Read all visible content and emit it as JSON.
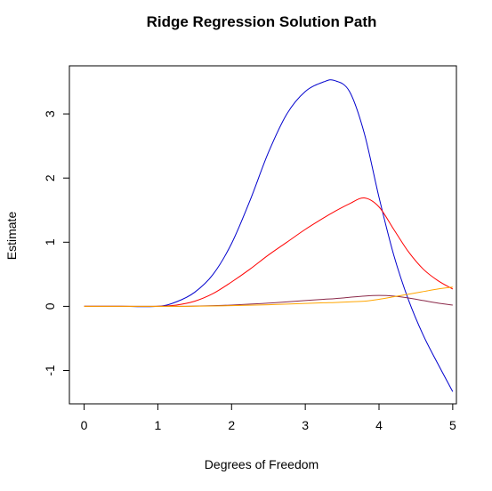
{
  "chart_data": {
    "type": "line",
    "title": "Ridge Regression Solution Path",
    "xlabel": "Degrees of Freedom",
    "ylabel": "Estimate",
    "xlim": [
      -0.2,
      5.05
    ],
    "ylim": [
      -1.52,
      3.75
    ],
    "xticks": [
      0,
      1,
      2,
      3,
      4,
      5
    ],
    "yticks": [
      -1,
      0,
      1,
      2,
      3
    ],
    "grid": false,
    "legend": "none",
    "x": [
      0,
      0.5,
      1,
      1.25,
      1.5,
      1.75,
      2,
      2.25,
      2.5,
      2.75,
      3,
      3.25,
      3.4,
      3.6,
      3.8,
      4,
      4.2,
      4.4,
      4.6,
      4.8,
      5
    ],
    "series": [
      {
        "color": "#0000cd",
        "values": [
          0,
          0,
          0,
          0.07,
          0.22,
          0.5,
          0.98,
          1.65,
          2.4,
          3.0,
          3.35,
          3.5,
          3.52,
          3.35,
          2.7,
          1.7,
          0.8,
          0.1,
          -0.45,
          -0.9,
          -1.33
        ]
      },
      {
        "color": "#ff0000",
        "values": [
          0,
          0,
          0,
          0.02,
          0.08,
          0.2,
          0.38,
          0.58,
          0.8,
          1.0,
          1.2,
          1.38,
          1.48,
          1.6,
          1.69,
          1.55,
          1.2,
          0.85,
          0.58,
          0.4,
          0.27
        ]
      },
      {
        "color": "#8b2a4a",
        "values": [
          0,
          0,
          0,
          0,
          0.003,
          0.01,
          0.02,
          0.035,
          0.05,
          0.07,
          0.09,
          0.11,
          0.12,
          0.14,
          0.16,
          0.17,
          0.16,
          0.13,
          0.09,
          0.05,
          0.02
        ]
      },
      {
        "color": "#ffa500",
        "values": [
          0,
          0,
          0,
          0,
          0.002,
          0.005,
          0.01,
          0.018,
          0.025,
          0.035,
          0.045,
          0.055,
          0.06,
          0.07,
          0.08,
          0.11,
          0.15,
          0.19,
          0.23,
          0.27,
          0.3
        ]
      }
    ]
  }
}
